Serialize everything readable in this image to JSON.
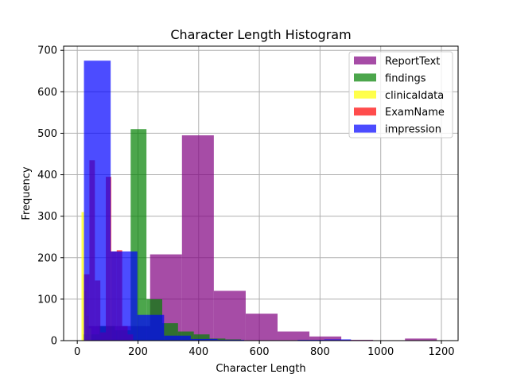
{
  "chart_data": {
    "type": "bar",
    "title": "Character Length Histogram",
    "xlabel": "Character Length",
    "ylabel": "Frequency",
    "xlim": [
      -45,
      1255
    ],
    "ylim": [
      0,
      710
    ],
    "xticks": [
      0,
      200,
      400,
      600,
      800,
      1000,
      1200
    ],
    "yticks": [
      0,
      100,
      200,
      300,
      400,
      500,
      600,
      700
    ],
    "grid": true,
    "legend_position": "top-right",
    "series": [
      {
        "name": "ReportText",
        "color": "#800080",
        "alpha": 0.7,
        "bins": [
          {
            "x0": 30,
            "x1": 135,
            "y": 35
          },
          {
            "x0": 135,
            "x1": 240,
            "y": 35
          },
          {
            "x0": 240,
            "x1": 345,
            "y": 208
          },
          {
            "x0": 345,
            "x1": 450,
            "y": 495
          },
          {
            "x0": 450,
            "x1": 555,
            "y": 120
          },
          {
            "x0": 555,
            "x1": 660,
            "y": 65
          },
          {
            "x0": 660,
            "x1": 765,
            "y": 22
          },
          {
            "x0": 765,
            "x1": 870,
            "y": 10
          },
          {
            "x0": 870,
            "x1": 975,
            "y": 2
          },
          {
            "x0": 975,
            "x1": 1080,
            "y": 1
          },
          {
            "x0": 1080,
            "x1": 1185,
            "y": 5
          }
        ]
      },
      {
        "name": "findings",
        "color": "#008000",
        "alpha": 0.7,
        "bins": [
          {
            "x0": 20,
            "x1": 72,
            "y": 15
          },
          {
            "x0": 72,
            "x1": 124,
            "y": 35
          },
          {
            "x0": 124,
            "x1": 176,
            "y": 25
          },
          {
            "x0": 176,
            "x1": 228,
            "y": 510
          },
          {
            "x0": 228,
            "x1": 280,
            "y": 100
          },
          {
            "x0": 280,
            "x1": 332,
            "y": 42
          },
          {
            "x0": 332,
            "x1": 384,
            "y": 22
          },
          {
            "x0": 384,
            "x1": 436,
            "y": 15
          },
          {
            "x0": 436,
            "x1": 488,
            "y": 5
          },
          {
            "x0": 488,
            "x1": 540,
            "y": 3
          },
          {
            "x0": 540,
            "x1": 650,
            "y": 1
          }
        ]
      },
      {
        "name": "clinicaldata",
        "color": "#ffff00",
        "alpha": 0.7,
        "bins": [
          {
            "x0": 14,
            "x1": 22,
            "y": 310
          },
          {
            "x0": 22,
            "x1": 30,
            "y": 120
          },
          {
            "x0": 30,
            "x1": 38,
            "y": 60
          },
          {
            "x0": 38,
            "x1": 46,
            "y": 30
          }
        ]
      },
      {
        "name": "ExamName",
        "color": "#ff0000",
        "alpha": 0.7,
        "bins": [
          {
            "x0": 22,
            "x1": 40,
            "y": 160
          },
          {
            "x0": 40,
            "x1": 58,
            "y": 435
          },
          {
            "x0": 58,
            "x1": 76,
            "y": 145
          },
          {
            "x0": 76,
            "x1": 94,
            "y": 20
          },
          {
            "x0": 94,
            "x1": 112,
            "y": 395
          },
          {
            "x0": 112,
            "x1": 130,
            "y": 215
          },
          {
            "x0": 130,
            "x1": 148,
            "y": 218
          },
          {
            "x0": 148,
            "x1": 166,
            "y": 35
          },
          {
            "x0": 166,
            "x1": 184,
            "y": 15
          }
        ]
      },
      {
        "name": "impression",
        "color": "#0000ff",
        "alpha": 0.7,
        "bins": [
          {
            "x0": 22,
            "x1": 110,
            "y": 675
          },
          {
            "x0": 110,
            "x1": 198,
            "y": 215
          },
          {
            "x0": 198,
            "x1": 286,
            "y": 62
          },
          {
            "x0": 286,
            "x1": 374,
            "y": 12
          },
          {
            "x0": 374,
            "x1": 462,
            "y": 4
          },
          {
            "x0": 462,
            "x1": 550,
            "y": 2
          },
          {
            "x0": 550,
            "x1": 638,
            "y": 1
          },
          {
            "x0": 638,
            "x1": 726,
            "y": 1
          },
          {
            "x0": 726,
            "x1": 814,
            "y": 2
          },
          {
            "x0": 814,
            "x1": 902,
            "y": 3
          }
        ]
      }
    ]
  }
}
